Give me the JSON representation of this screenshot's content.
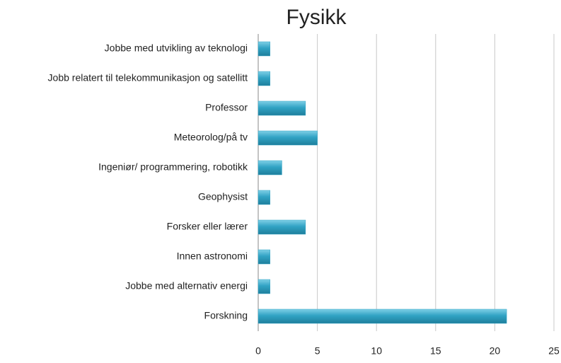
{
  "chart_data": {
    "type": "bar",
    "orientation": "horizontal",
    "title": "Fysikk",
    "categories": [
      "Jobbe med utvikling av teknologi",
      "Jobb relatert til telekommunikasjon og satellitt",
      "Professor",
      "Meteorolog/på tv",
      "Ingeniør/ programmering, robotikk",
      "Geophysist",
      "Forsker eller lærer",
      "Innen astronomi",
      "Jobbe med alternativ energi",
      "Forskning"
    ],
    "values": [
      1,
      1,
      4,
      5,
      2,
      1,
      4,
      1,
      1,
      21
    ],
    "color": "#31a3c4",
    "xlim": [
      0,
      25
    ],
    "xticks": [
      0,
      5,
      10,
      15,
      20,
      25
    ],
    "grid": true
  }
}
